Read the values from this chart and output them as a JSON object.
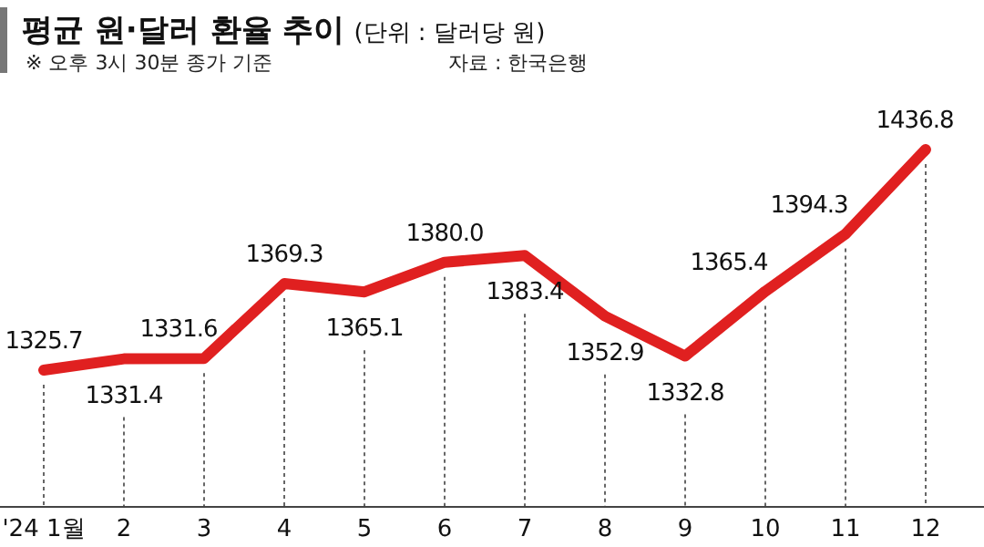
{
  "chart_data": {
    "type": "line",
    "title": "평균 원·달러 환율 추이",
    "ylabel": "(단위 : 달러당 원)",
    "subtitle": "※ 오후 3시 30분 종가 기준",
    "annotations": [
      "자료 : 한국은행"
    ],
    "categories": [
      "'24 1월",
      "2",
      "3",
      "4",
      "5",
      "6",
      "7",
      "8",
      "9",
      "10",
      "11",
      "12"
    ],
    "series": [
      {
        "color": "#e02020",
        "values": [
          1325.7,
          1331.4,
          1331.6,
          1369.3,
          1365.1,
          1380.0,
          1383.4,
          1352.9,
          1332.8,
          1365.4,
          1394.3,
          1436.8
        ],
        "value_labels": [
          "1325.7",
          "1331.4",
          "1331.6",
          "1369.3",
          "1365.1",
          "1380.0",
          "1383.4",
          "1352.9",
          "1332.8",
          "1365.4",
          "1394.3",
          "1436.8"
        ]
      }
    ],
    "grid": "x",
    "marker": "none",
    "line_style": "solid"
  }
}
